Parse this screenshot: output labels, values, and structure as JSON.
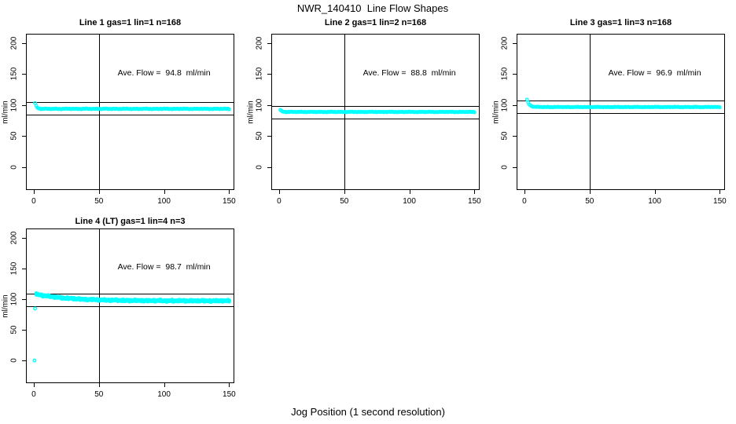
{
  "figure": {
    "title": "NWR_140410  Line Flow Shapes",
    "outer_xlabel": "Jog Position (1 second resolution)",
    "background_color": "#FFFFFF",
    "axis_color": "#000000",
    "point_color": "#00FFFF"
  },
  "chart_data": [
    {
      "type": "scatter",
      "title": "Line 1 gas=1 lin=1 n=168",
      "annotation": "Ave. Flow =  94.8  ml/min",
      "annotation_xy": [
        100,
        152
      ],
      "ave_flow_ml_min": 94.8,
      "gas": 1,
      "lin": 1,
      "n": 168,
      "ylabel": "ml/min",
      "x_ticks": [
        0,
        50,
        100,
        150
      ],
      "y_ticks": [
        0,
        50,
        100,
        150,
        200
      ],
      "xlim": [
        -6,
        154
      ],
      "ylim": [
        -37,
        215
      ],
      "grid": false,
      "vline_x": 50,
      "hlines_y": [
        104.8,
        84.8
      ],
      "series": {
        "x_start": 1,
        "x_end": 150,
        "n": 168,
        "y_start": 103,
        "y_settle": 93.9,
        "tau": 1.2,
        "noise": 0.7,
        "overlap": [
          0
        ],
        "outliers": []
      },
      "marker": {
        "shape": "open-circle",
        "color": "#00FFFF",
        "radius": 1.8
      }
    },
    {
      "type": "scatter",
      "title": "Line 2 gas=1 lin=2 n=168",
      "annotation": "Ave. Flow =  88.8  ml/min",
      "annotation_xy": [
        100,
        152
      ],
      "ave_flow_ml_min": 88.8,
      "gas": 1,
      "lin": 2,
      "n": 168,
      "ylabel": "ml/min",
      "x_ticks": [
        0,
        50,
        100,
        150
      ],
      "y_ticks": [
        0,
        50,
        100,
        150,
        200
      ],
      "xlim": [
        -6,
        154
      ],
      "ylim": [
        -37,
        215
      ],
      "grid": false,
      "vline_x": 50,
      "hlines_y": [
        98.8,
        78.8
      ],
      "series": {
        "x_start": 1,
        "x_end": 150,
        "n": 168,
        "y_start": 92,
        "y_settle": 88.9,
        "tau": 1.2,
        "noise": 0.6,
        "overlap": [
          0
        ],
        "outliers": []
      },
      "marker": {
        "shape": "open-circle",
        "color": "#00FFFF",
        "radius": 1.8
      }
    },
    {
      "type": "scatter",
      "title": "Line 3 gas=1 lin=3 n=168",
      "annotation": "Ave. Flow =  96.9  ml/min",
      "annotation_xy": [
        100,
        152
      ],
      "ave_flow_ml_min": 96.9,
      "gas": 1,
      "lin": 3,
      "n": 168,
      "ylabel": "ml/min",
      "x_ticks": [
        0,
        50,
        100,
        150
      ],
      "y_ticks": [
        0,
        50,
        100,
        150,
        200
      ],
      "xlim": [
        -6,
        154
      ],
      "ylim": [
        -37,
        215
      ],
      "grid": false,
      "vline_x": 50,
      "hlines_y": [
        106.9,
        86.9
      ],
      "series": {
        "x_start": 2,
        "x_end": 150,
        "n": 168,
        "y_start": 108.5,
        "y_settle": 96.8,
        "tau": 1.8,
        "noise": 0.6,
        "overlap": [
          0
        ],
        "outliers": []
      },
      "marker": {
        "shape": "open-circle",
        "color": "#00FFFF",
        "radius": 1.8
      }
    },
    {
      "type": "scatter",
      "title": "Line 4 (LT) gas=1 lin=4 n=3",
      "annotation": "Ave. Flow =  98.7  ml/min",
      "annotation_xy": [
        100,
        152
      ],
      "ave_flow_ml_min": 98.7,
      "gas": 1,
      "lin": 4,
      "n": 3,
      "ylabel": "ml/min",
      "x_ticks": [
        0,
        50,
        100,
        150
      ],
      "y_ticks": [
        0,
        50,
        100,
        150,
        200
      ],
      "xlim": [
        -6,
        154
      ],
      "ylim": [
        -37,
        215
      ],
      "grid": false,
      "vline_x": 50,
      "hlines_y": [
        108.7,
        88.7
      ],
      "series": {
        "x_start": 2,
        "x_end": 150,
        "n": 150,
        "y_start": 108,
        "y_settle": 97.1,
        "tau": 25,
        "noise": 0.8,
        "overlap": [
          0,
          0.9,
          -0.9
        ],
        "outliers": [
          [
            0.5,
            0
          ],
          [
            1,
            84.5
          ]
        ]
      },
      "marker": {
        "shape": "open-circle",
        "color": "#00FFFF",
        "radius": 1.8
      }
    }
  ]
}
